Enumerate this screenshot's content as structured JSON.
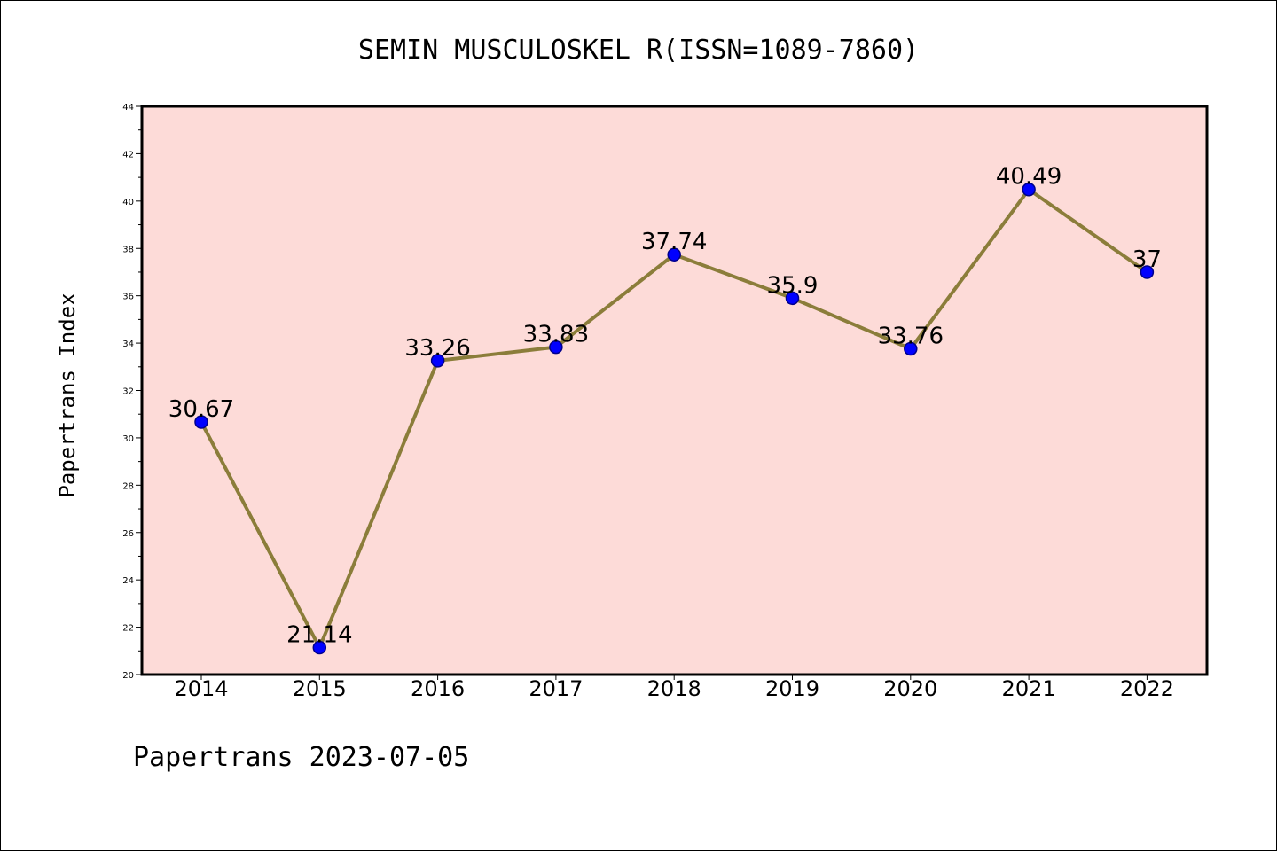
{
  "chart_data": {
    "type": "line",
    "title": "SEMIN MUSCULOSKEL R(ISSN=1089-7860)",
    "ylabel": "Papertrans Index",
    "xlabel": "",
    "footer": "Papertrans 2023-07-05",
    "categories": [
      "2014",
      "2015",
      "2016",
      "2017",
      "2018",
      "2019",
      "2020",
      "2021",
      "2022"
    ],
    "series": [
      {
        "values": [
          30.67,
          21.14,
          33.26,
          33.83,
          37.74,
          35.9,
          33.76,
          40.49,
          37
        ]
      }
    ],
    "value_labels": [
      "30.67",
      "21.14",
      "33.26",
      "33.83",
      "37.74",
      "35.9",
      "33.76",
      "40.49",
      "37"
    ],
    "ylim": [
      20,
      44
    ],
    "yticks": [
      "20",
      "22",
      "24",
      "26",
      "28",
      "30",
      "32",
      "34",
      "36",
      "38",
      "40",
      "42",
      "44"
    ],
    "grid": false,
    "legend": "none",
    "colors": {
      "plot_background": "#fddbd8",
      "line": "#8b7d3a",
      "marker_fill": "#0000ff",
      "marker_edge": "#00008b"
    }
  }
}
